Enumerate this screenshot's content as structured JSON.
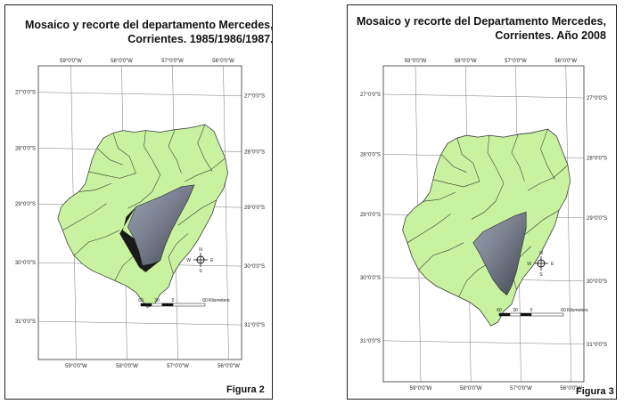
{
  "maps": [
    {
      "title_line1": "Mosaico y recorte del departamento      Mercedes,",
      "title_line2": "Corrientes. 1985/1986/1987.",
      "figure_label": "Figura 2",
      "longitude_labels": [
        "59°0'0\"W",
        "58°0'0\"W",
        "57°0'0\"W",
        "56°0'0\"W"
      ],
      "latitude_labels": [
        "27°0'0\"S",
        "28°0'0\"S",
        "29°0'0\"S",
        "30°0'0\"S",
        "31°0'0\"S"
      ],
      "scale_labels": [
        "60",
        "30",
        "0",
        "60",
        "Kilometers"
      ],
      "compass": [
        "N",
        "S",
        "E",
        "W"
      ]
    },
    {
      "title_line1": "Mosaico y recorte del Departamento      Mercedes,",
      "title_line2": "Corrientes. Año 2008",
      "figure_label": "Figura 3",
      "longitude_labels": [
        "59°0'0\"W",
        "58°0'0\"W",
        "57°0'0\"W",
        "56°0'0\"W"
      ],
      "latitude_labels": [
        "27°0'0\"S",
        "28°0'0\"S",
        "29°0'0\"S",
        "30°0'0\"S",
        "31°0'0\"S"
      ],
      "scale_labels": [
        "60",
        "30",
        "0",
        "60",
        "Kilometers"
      ],
      "compass": [
        "N",
        "S",
        "E",
        "W"
      ]
    }
  ],
  "colors": {
    "province_fill": "#c8f2a0",
    "border": "#333333",
    "grid": "#777777",
    "imagery_dark": "#1a1a1a",
    "imagery_mid": "#7a7f8e"
  }
}
